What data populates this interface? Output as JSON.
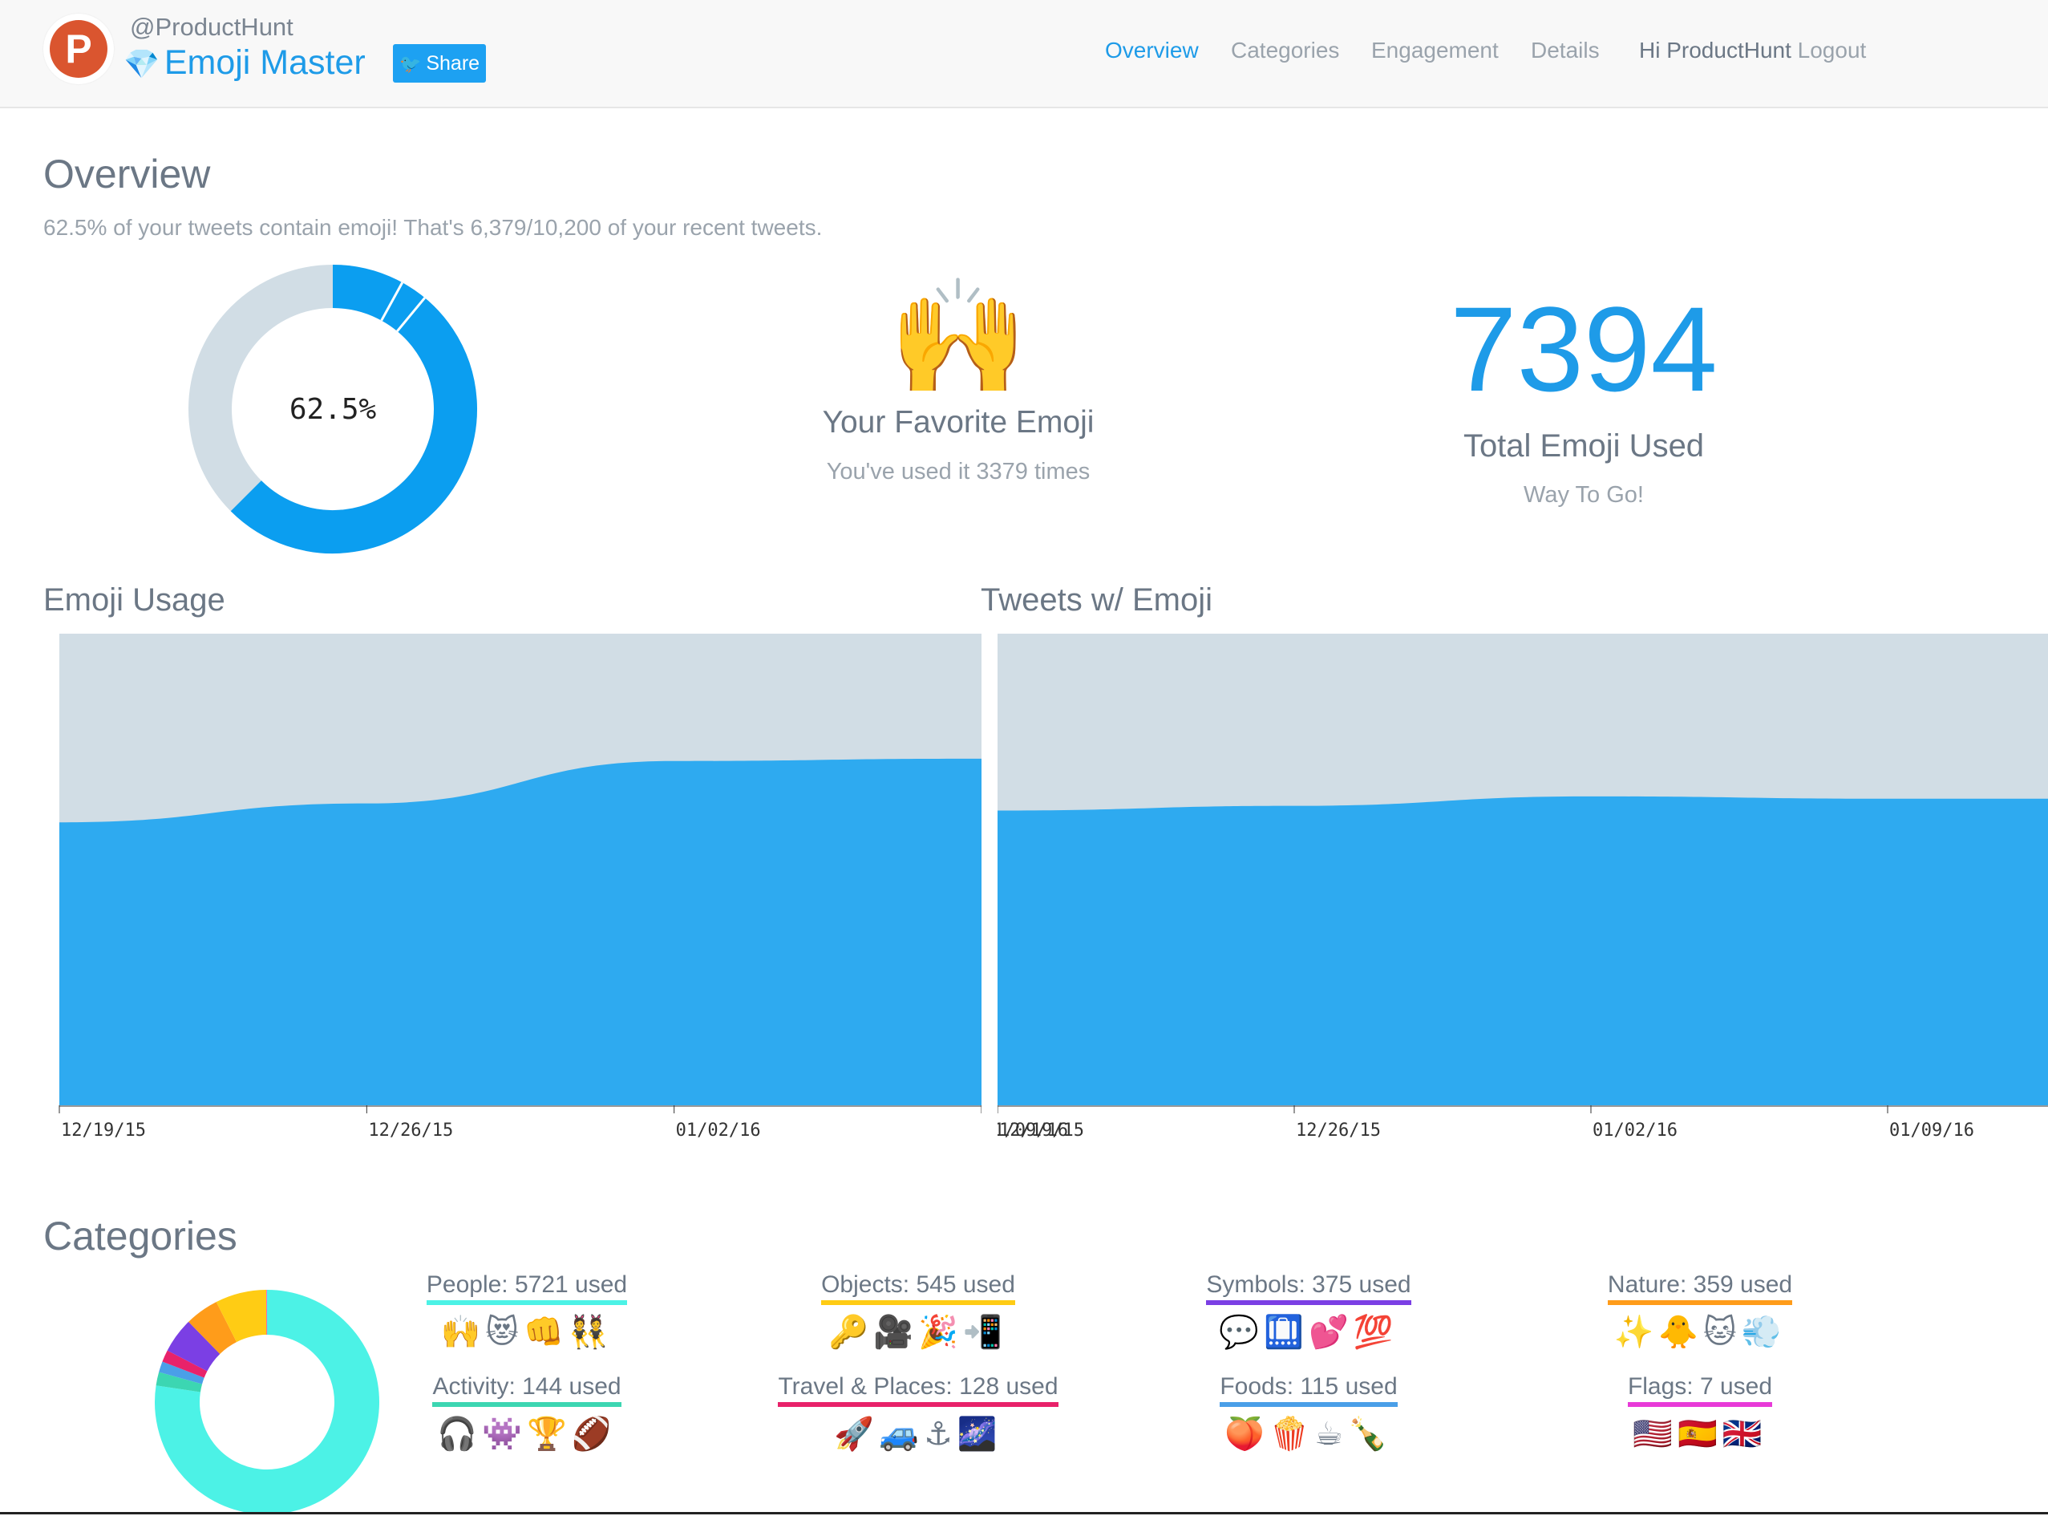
{
  "header": {
    "logo_letter": "P",
    "handle": "@ProductHunt",
    "app_icon": "gem-emoji",
    "app_gem": "💎",
    "app_title": "Emoji Master",
    "share_label": "Share",
    "nav": [
      {
        "label": "Overview",
        "active": true
      },
      {
        "label": "Categories",
        "active": false
      },
      {
        "label": "Engagement",
        "active": false
      },
      {
        "label": "Details",
        "active": false
      }
    ],
    "greeting": "Hi ProductHunt",
    "logout_label": "Logout"
  },
  "overview": {
    "title": "Overview",
    "subtitle": "62.5% of your tweets contain emoji! That's 6,379/10,200 of your recent tweets.",
    "donut_percent": 62.5,
    "donut_label": "62.5%",
    "favorite_emoji": "🙌",
    "favorite_title": "Your Favorite Emoji",
    "favorite_sub": "You've used it 3379 times",
    "total_number": "7394",
    "total_title": "Total Emoji Used",
    "total_sub": "Way To Go!"
  },
  "colors": {
    "accent": "#1e9be8",
    "area_fill": "#2eaaf0",
    "area_bg": "#d1dde5",
    "donut_rest": "#d1dde5"
  },
  "chart_data": [
    {
      "type": "area",
      "title": "Emoji Usage",
      "x": [
        "12/19/15",
        "12/26/15",
        "01/02/16",
        "01/09/16"
      ],
      "values": [
        0.6,
        0.64,
        0.73,
        0.735
      ],
      "ylim": [
        0,
        1
      ]
    },
    {
      "type": "area",
      "title": "Tweets w/ Emoji",
      "x": [
        "12/19/15",
        "12/26/15",
        "01/02/16",
        "01/09/16"
      ],
      "values": [
        0.625,
        0.635,
        0.655,
        0.65
      ],
      "ylim": [
        0,
        1
      ]
    }
  ],
  "categories": {
    "title": "Categories",
    "items": [
      {
        "label": "People: 5721 used",
        "count": 5721,
        "color": "#4cf2e6",
        "emojis": "🙌😻👊👯"
      },
      {
        "label": "Objects: 545 used",
        "count": 545,
        "color": "#ffcc14",
        "emojis": "🔑🎥🎉📲"
      },
      {
        "label": "Symbols: 375 used",
        "count": 375,
        "color": "#7b3fe4",
        "emojis": "💬🛄💕💯"
      },
      {
        "label": "Nature: 359 used",
        "count": 359,
        "color": "#ff9c1a",
        "emojis": "✨🐥🐱💨"
      },
      {
        "label": "Activity: 144 used",
        "count": 144,
        "color": "#3cd6b2",
        "emojis": "🎧👾🏆🏈"
      },
      {
        "label": "Travel & Places: 128 used",
        "count": 128,
        "color": "#e8226a",
        "emojis": "🚀🚙⚓🌌"
      },
      {
        "label": "Foods: 115 used",
        "count": 115,
        "color": "#4a9fe8",
        "emojis": "🍑🍿☕🍾"
      },
      {
        "label": "Flags: 7 used",
        "count": 7,
        "color": "#e83ad8",
        "emojis": "🇺🇸🇪🇸🇬🇧"
      }
    ]
  }
}
